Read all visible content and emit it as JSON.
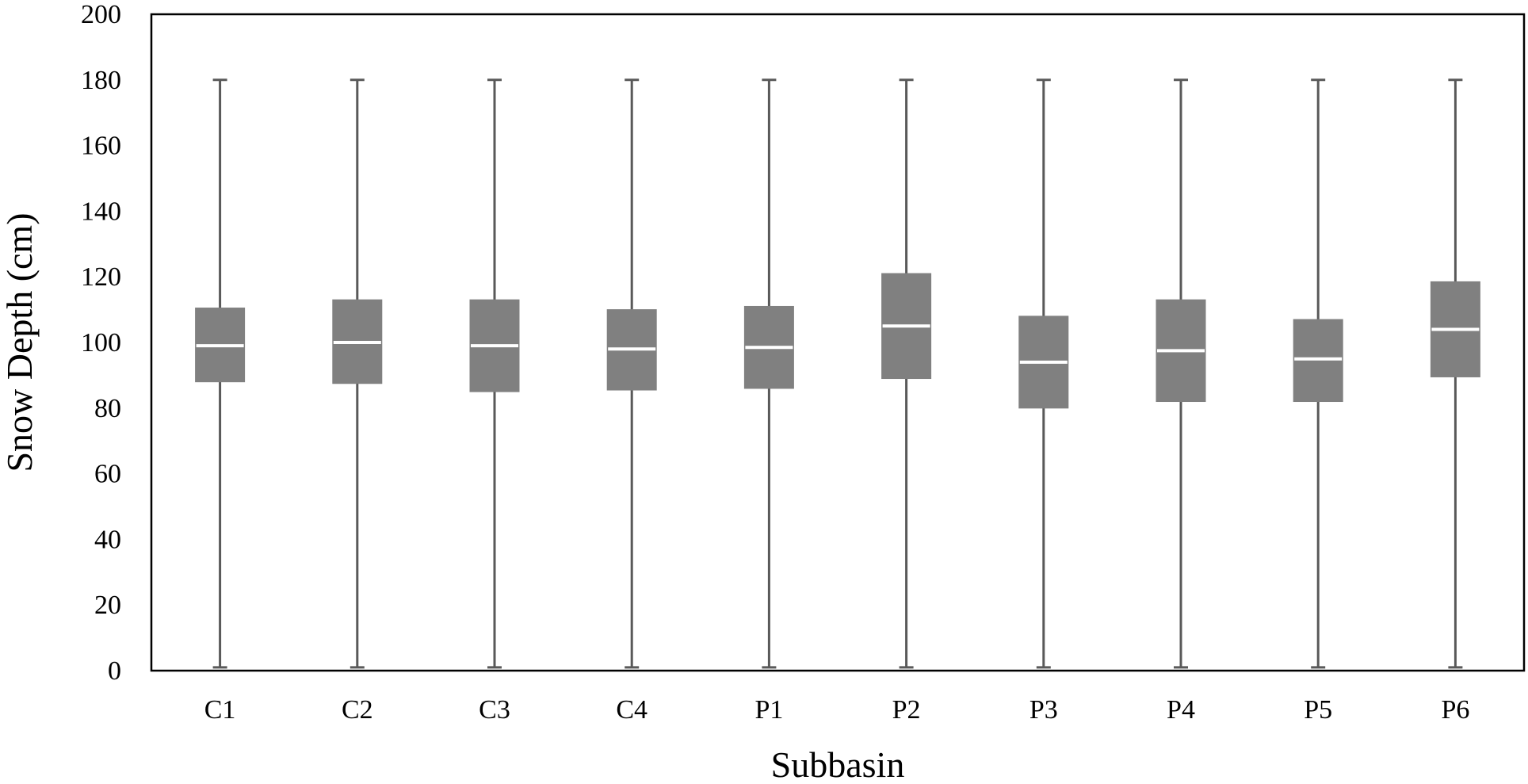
{
  "chart_data": {
    "type": "box",
    "title": "",
    "xlabel": "Subbasin",
    "ylabel": "Snow Depth (cm)",
    "ylim": [
      0,
      200
    ],
    "yticks": [
      0,
      20,
      40,
      60,
      80,
      100,
      120,
      140,
      160,
      180,
      200
    ],
    "categories": [
      "C1",
      "C2",
      "C3",
      "C4",
      "P1",
      "P2",
      "P3",
      "P4",
      "P5",
      "P6"
    ],
    "boxes": [
      {
        "category": "C1",
        "min": 1,
        "q1": 88,
        "median": 99,
        "q3": 110.5,
        "max": 180
      },
      {
        "category": "C2",
        "min": 1,
        "q1": 87.5,
        "median": 100,
        "q3": 113,
        "max": 180
      },
      {
        "category": "C3",
        "min": 1,
        "q1": 85,
        "median": 99,
        "q3": 113,
        "max": 180
      },
      {
        "category": "C4",
        "min": 1,
        "q1": 85.5,
        "median": 98,
        "q3": 110,
        "max": 180
      },
      {
        "category": "P1",
        "min": 1,
        "q1": 86,
        "median": 98.5,
        "q3": 111,
        "max": 180
      },
      {
        "category": "P2",
        "min": 1,
        "q1": 89,
        "median": 105,
        "q3": 121,
        "max": 180
      },
      {
        "category": "P3",
        "min": 1,
        "q1": 80,
        "median": 94,
        "q3": 108,
        "max": 180
      },
      {
        "category": "P4",
        "min": 1,
        "q1": 82,
        "median": 97.5,
        "q3": 113,
        "max": 180
      },
      {
        "category": "P5",
        "min": 1,
        "q1": 82,
        "median": 95,
        "q3": 107,
        "max": 180
      },
      {
        "category": "P6",
        "min": 1,
        "q1": 89.5,
        "median": 104,
        "q3": 118.5,
        "max": 180
      }
    ],
    "grid": false,
    "legend": "none",
    "colors": {
      "box_fill": "#808080",
      "median_line": "#ffffff",
      "whisker": "#595959",
      "frame": "#000000"
    }
  }
}
